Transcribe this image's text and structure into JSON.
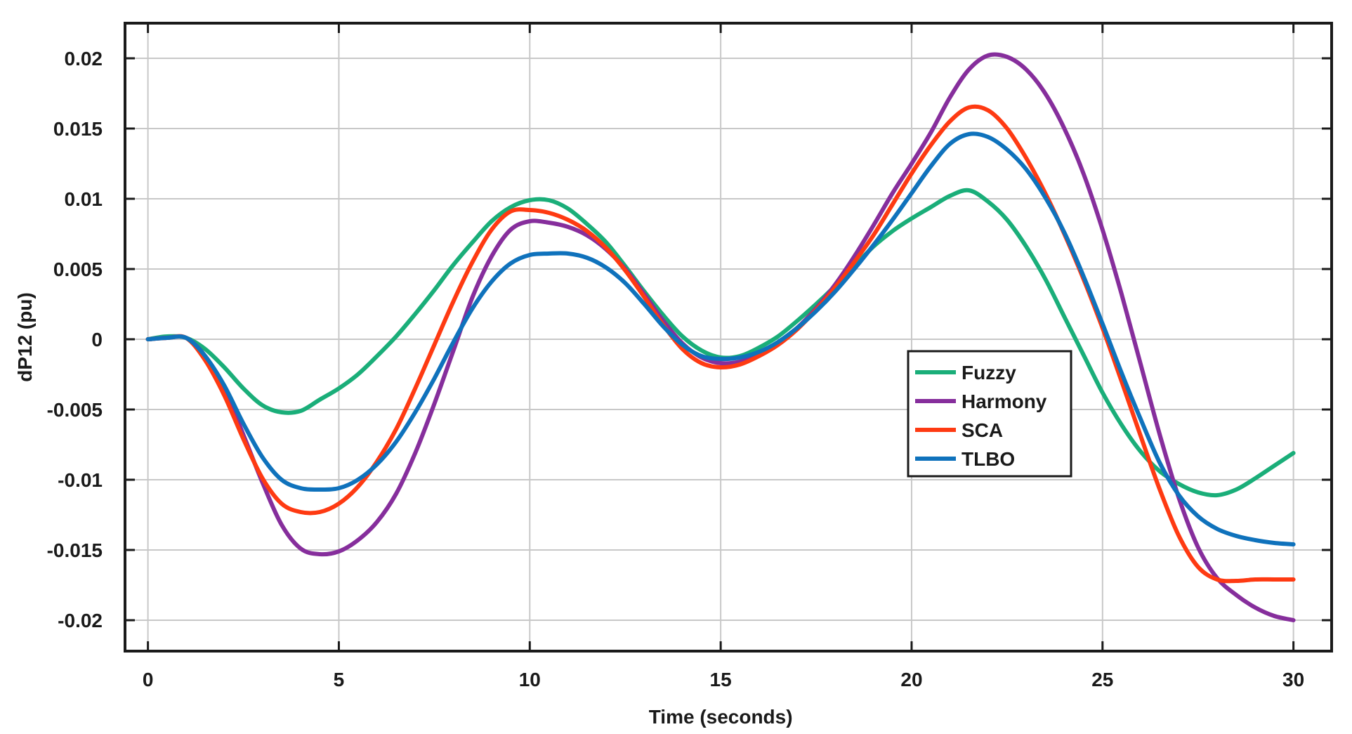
{
  "chart_data": {
    "type": "line",
    "title": "",
    "xlabel": "Time (seconds)",
    "ylabel": "dP12 (pu)",
    "xlim": [
      -0.6,
      31
    ],
    "ylim": [
      -0.0222,
      0.0225
    ],
    "grid": true,
    "legend_position": "center-right",
    "x_ticks": [
      0,
      5,
      10,
      15,
      20,
      25,
      30
    ],
    "x_tick_labels": [
      "0",
      "5",
      "10",
      "15",
      "20",
      "25",
      "30"
    ],
    "y_ticks": [
      0.02,
      0.015,
      0.01,
      0.005,
      0,
      -0.005,
      -0.01,
      -0.015,
      -0.02
    ],
    "y_tick_labels": [
      "0.02",
      "0.015",
      "0.01",
      "0.005",
      "0",
      "-0.005",
      "-0.01",
      "-0.015",
      "-0.02"
    ],
    "x": [
      0,
      0.5,
      1,
      1.5,
      2,
      2.5,
      3,
      3.5,
      4,
      4.5,
      5,
      5.5,
      6,
      6.5,
      7,
      7.5,
      8,
      8.5,
      9,
      9.5,
      10,
      10.5,
      11,
      11.5,
      12,
      12.5,
      13,
      13.5,
      14,
      14.5,
      15,
      15.5,
      16,
      16.5,
      17,
      17.5,
      18,
      18.5,
      19,
      19.5,
      20,
      20.5,
      21,
      21.5,
      22,
      22.5,
      23,
      23.5,
      24,
      24.5,
      25,
      25.5,
      26,
      26.5,
      27,
      27.5,
      28,
      28.5,
      29,
      29.5,
      30
    ],
    "series": [
      {
        "name": "Fuzzy",
        "color": "#1aae79",
        "values": [
          0,
          0.0002,
          0.0001,
          -0.0007,
          -0.002,
          -0.0035,
          -0.0047,
          -0.0052,
          -0.0051,
          -0.0043,
          -0.0035,
          -0.0025,
          -0.0012,
          0.0002,
          0.0018,
          0.0035,
          0.0053,
          0.0069,
          0.0084,
          0.0094,
          0.0099,
          0.0099,
          0.0093,
          0.0082,
          0.0069,
          0.0052,
          0.0034,
          0.0017,
          0.0002,
          -0.0008,
          -0.0013,
          -0.0012,
          -0.0006,
          0.0002,
          0.0013,
          0.0025,
          0.0038,
          0.0052,
          0.0066,
          0.0077,
          0.0086,
          0.0094,
          0.0102,
          0.0106,
          0.0098,
          0.0085,
          0.0066,
          0.0043,
          0.0016,
          -0.0011,
          -0.0038,
          -0.0061,
          -0.008,
          -0.0094,
          -0.0103,
          -0.0109,
          -0.0111,
          -0.0107,
          -0.0099,
          -0.009,
          -0.0081
        ]
      },
      {
        "name": "Harmony",
        "color": "#862e9c",
        "values": [
          0,
          0.0001,
          0.0001,
          -0.0012,
          -0.0035,
          -0.0068,
          -0.0102,
          -0.0132,
          -0.0149,
          -0.0153,
          -0.0151,
          -0.0143,
          -0.013,
          -0.011,
          -0.0081,
          -0.0046,
          -0.0008,
          0.003,
          0.0059,
          0.0078,
          0.0084,
          0.0083,
          0.008,
          0.0074,
          0.0064,
          0.005,
          0.0032,
          0.0013,
          -0.0003,
          -0.0013,
          -0.0017,
          -0.0016,
          -0.0011,
          -0.0003,
          0.0008,
          0.0022,
          0.0039,
          0.0059,
          0.0081,
          0.0104,
          0.0125,
          0.0147,
          0.0172,
          0.0192,
          0.0202,
          0.0201,
          0.0192,
          0.0175,
          0.015,
          0.0118,
          0.0078,
          0.0032,
          -0.0018,
          -0.0068,
          -0.0113,
          -0.0148,
          -0.017,
          -0.0182,
          -0.0191,
          -0.0197,
          -0.02
        ]
      },
      {
        "name": "SCA",
        "color": "#fe3a12",
        "values": [
          0,
          0.0001,
          0.0001,
          -0.0015,
          -0.004,
          -0.0071,
          -0.0099,
          -0.0117,
          -0.0123,
          -0.0123,
          -0.0117,
          -0.0105,
          -0.0087,
          -0.0064,
          -0.0035,
          -0.0004,
          0.0027,
          0.0055,
          0.0078,
          0.0091,
          0.0092,
          0.009,
          0.0085,
          0.0077,
          0.0065,
          0.0049,
          0.003,
          0.001,
          -0.0007,
          -0.0017,
          -0.002,
          -0.0018,
          -0.0012,
          -0.0004,
          0.0007,
          0.0021,
          0.0037,
          0.0055,
          0.0074,
          0.0096,
          0.0118,
          0.0138,
          0.0155,
          0.0165,
          0.0163,
          0.015,
          0.0129,
          0.0104,
          0.0075,
          0.0043,
          0.0008,
          -0.003,
          -0.0069,
          -0.0107,
          -0.014,
          -0.0162,
          -0.0171,
          -0.0172,
          -0.0171,
          -0.0171,
          -0.0171
        ]
      },
      {
        "name": "TLBO",
        "color": "#0f72bc",
        "values": [
          0,
          0.0001,
          0.0001,
          -0.0012,
          -0.0033,
          -0.006,
          -0.0084,
          -0.01,
          -0.0106,
          -0.0107,
          -0.0106,
          -0.01,
          -0.0089,
          -0.0073,
          -0.0052,
          -0.0028,
          -0.0002,
          0.0022,
          0.0041,
          0.0054,
          0.006,
          0.0061,
          0.0061,
          0.0058,
          0.0051,
          0.004,
          0.0025,
          0.0009,
          -0.0004,
          -0.0012,
          -0.0014,
          -0.0013,
          -0.0009,
          -0.0002,
          0.0008,
          0.002,
          0.0034,
          0.005,
          0.0067,
          0.0085,
          0.0104,
          0.0123,
          0.0139,
          0.0146,
          0.0144,
          0.0135,
          0.0121,
          0.0101,
          0.0076,
          0.0045,
          0.0011,
          -0.0024,
          -0.0057,
          -0.0088,
          -0.0111,
          -0.0126,
          -0.0135,
          -0.014,
          -0.0143,
          -0.0145,
          -0.0146
        ]
      }
    ]
  }
}
